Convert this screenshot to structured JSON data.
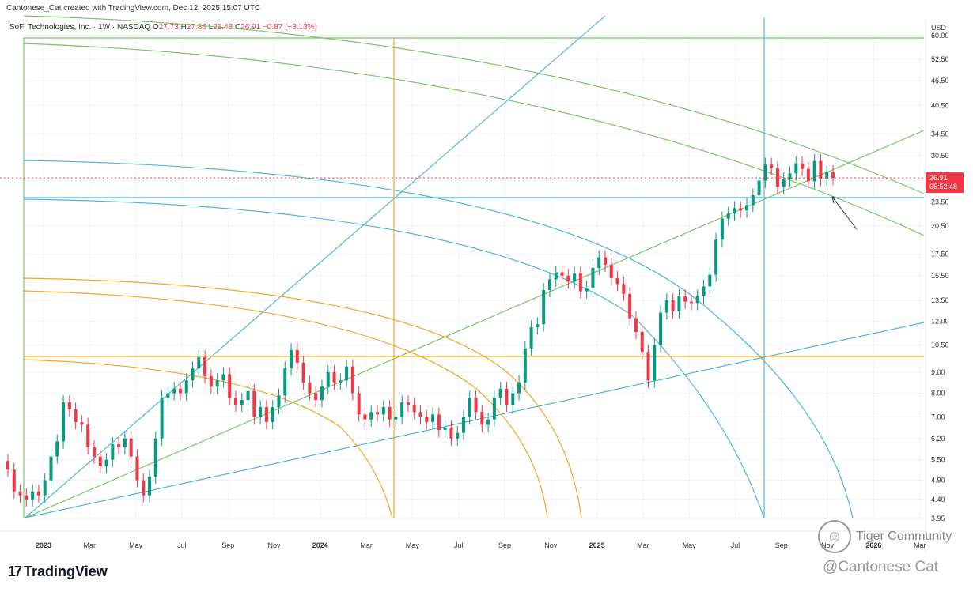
{
  "header": {
    "credit": "Cantonese_Cat created with TradingView.com, Dec 12, 2025 15:07 UTC"
  },
  "symbol": {
    "name": "SoFi Technologies, Inc. · 1W · NASDAQ",
    "open_label": "O",
    "open": "27.73",
    "high_label": "H",
    "high": "27.83",
    "low_label": "L",
    "low": "26.48",
    "close_label": "C",
    "close": "26.91",
    "change": "−0.87 (−3.13%)"
  },
  "price_tag": {
    "price": "26.91",
    "countdown": "05:52:48"
  },
  "colors": {
    "up": "#089981",
    "down": "#f23645",
    "blue_lines": "#4fb6d6",
    "green_lines": "#7cc36a",
    "orange_lines": "#f5a623",
    "grid": "#f0f3fa"
  },
  "footer": {
    "brand_mark": "17",
    "brand": "TradingView",
    "community": "Tiger Community",
    "watermark": "@Cantonese Cat"
  },
  "chart_data": {
    "type": "candlestick",
    "scale": "log",
    "currency": "USD",
    "y_ticks": [
      "60.00",
      "52.50",
      "46.50",
      "40.50",
      "34.50",
      "30.50",
      "26.50",
      "23.50",
      "20.50",
      "17.50",
      "15.50",
      "13.50",
      "12.00",
      "10.50",
      "9.00",
      "8.00",
      "7.00",
      "6.20",
      "5.50",
      "4.90",
      "4.40",
      "3.95"
    ],
    "x_ticks": [
      {
        "label": "2023",
        "bold": true
      },
      {
        "label": "Mar",
        "bold": false
      },
      {
        "label": "May",
        "bold": false
      },
      {
        "label": "Jul",
        "bold": false
      },
      {
        "label": "Sep",
        "bold": false
      },
      {
        "label": "Nov",
        "bold": false
      },
      {
        "label": "2024",
        "bold": true
      },
      {
        "label": "Mar",
        "bold": false
      },
      {
        "label": "May",
        "bold": false
      },
      {
        "label": "Jul",
        "bold": false
      },
      {
        "label": "Sep",
        "bold": false
      },
      {
        "label": "Nov",
        "bold": false
      },
      {
        "label": "2025",
        "bold": true
      },
      {
        "label": "Mar",
        "bold": false
      },
      {
        "label": "May",
        "bold": false
      },
      {
        "label": "Jul",
        "bold": false
      },
      {
        "label": "Sep",
        "bold": false
      },
      {
        "label": "Nov",
        "bold": false
      },
      {
        "label": "2026",
        "bold": true
      },
      {
        "label": "Mar",
        "bold": false
      }
    ],
    "closes": [
      5.2,
      4.6,
      4.5,
      4.4,
      4.6,
      4.5,
      4.9,
      5.6,
      6.1,
      7.6,
      7.3,
      6.8,
      6.7,
      5.9,
      5.6,
      5.3,
      5.5,
      6.0,
      5.9,
      6.2,
      5.6,
      4.9,
      4.5,
      5.0,
      6.2,
      7.8,
      8.0,
      8.2,
      8.0,
      8.6,
      9.2,
      9.8,
      8.8,
      8.3,
      8.6,
      8.9,
      7.8,
      7.5,
      7.7,
      8.1,
      7.0,
      7.4,
      6.8,
      7.4,
      7.9,
      9.2,
      10.2,
      9.5,
      8.5,
      8.0,
      7.7,
      8.3,
      9.0,
      8.5,
      8.6,
      9.3,
      8.0,
      7.1,
      6.9,
      7.2,
      7.1,
      7.4,
      6.9,
      7.0,
      7.6,
      7.5,
      7.2,
      7.0,
      6.8,
      7.1,
      6.5,
      6.6,
      6.2,
      6.4,
      7.0,
      7.8,
      7.2,
      6.7,
      6.9,
      7.8,
      8.2,
      7.5,
      8.0,
      8.5,
      10.3,
      11.6,
      11.8,
      14.3,
      15.2,
      15.8,
      15.5,
      15.0,
      15.7,
      14.2,
      14.5,
      16.2,
      17.2,
      16.5,
      15.3,
      14.8,
      14.0,
      12.2,
      11.3,
      10.1,
      8.6,
      10.5,
      12.6,
      13.5,
      12.7,
      13.8,
      13.4,
      13.3,
      13.8,
      14.6,
      15.6,
      19.0,
      21.4,
      22.0,
      22.7,
      22.4,
      23.1,
      24.4,
      26.5,
      29.0,
      28.4,
      25.6,
      26.7,
      27.6,
      29.2,
      28.3,
      26.4,
      29.6,
      26.8,
      27.8,
      26.9
    ],
    "annotation": "arrow pointing at latest candle"
  }
}
